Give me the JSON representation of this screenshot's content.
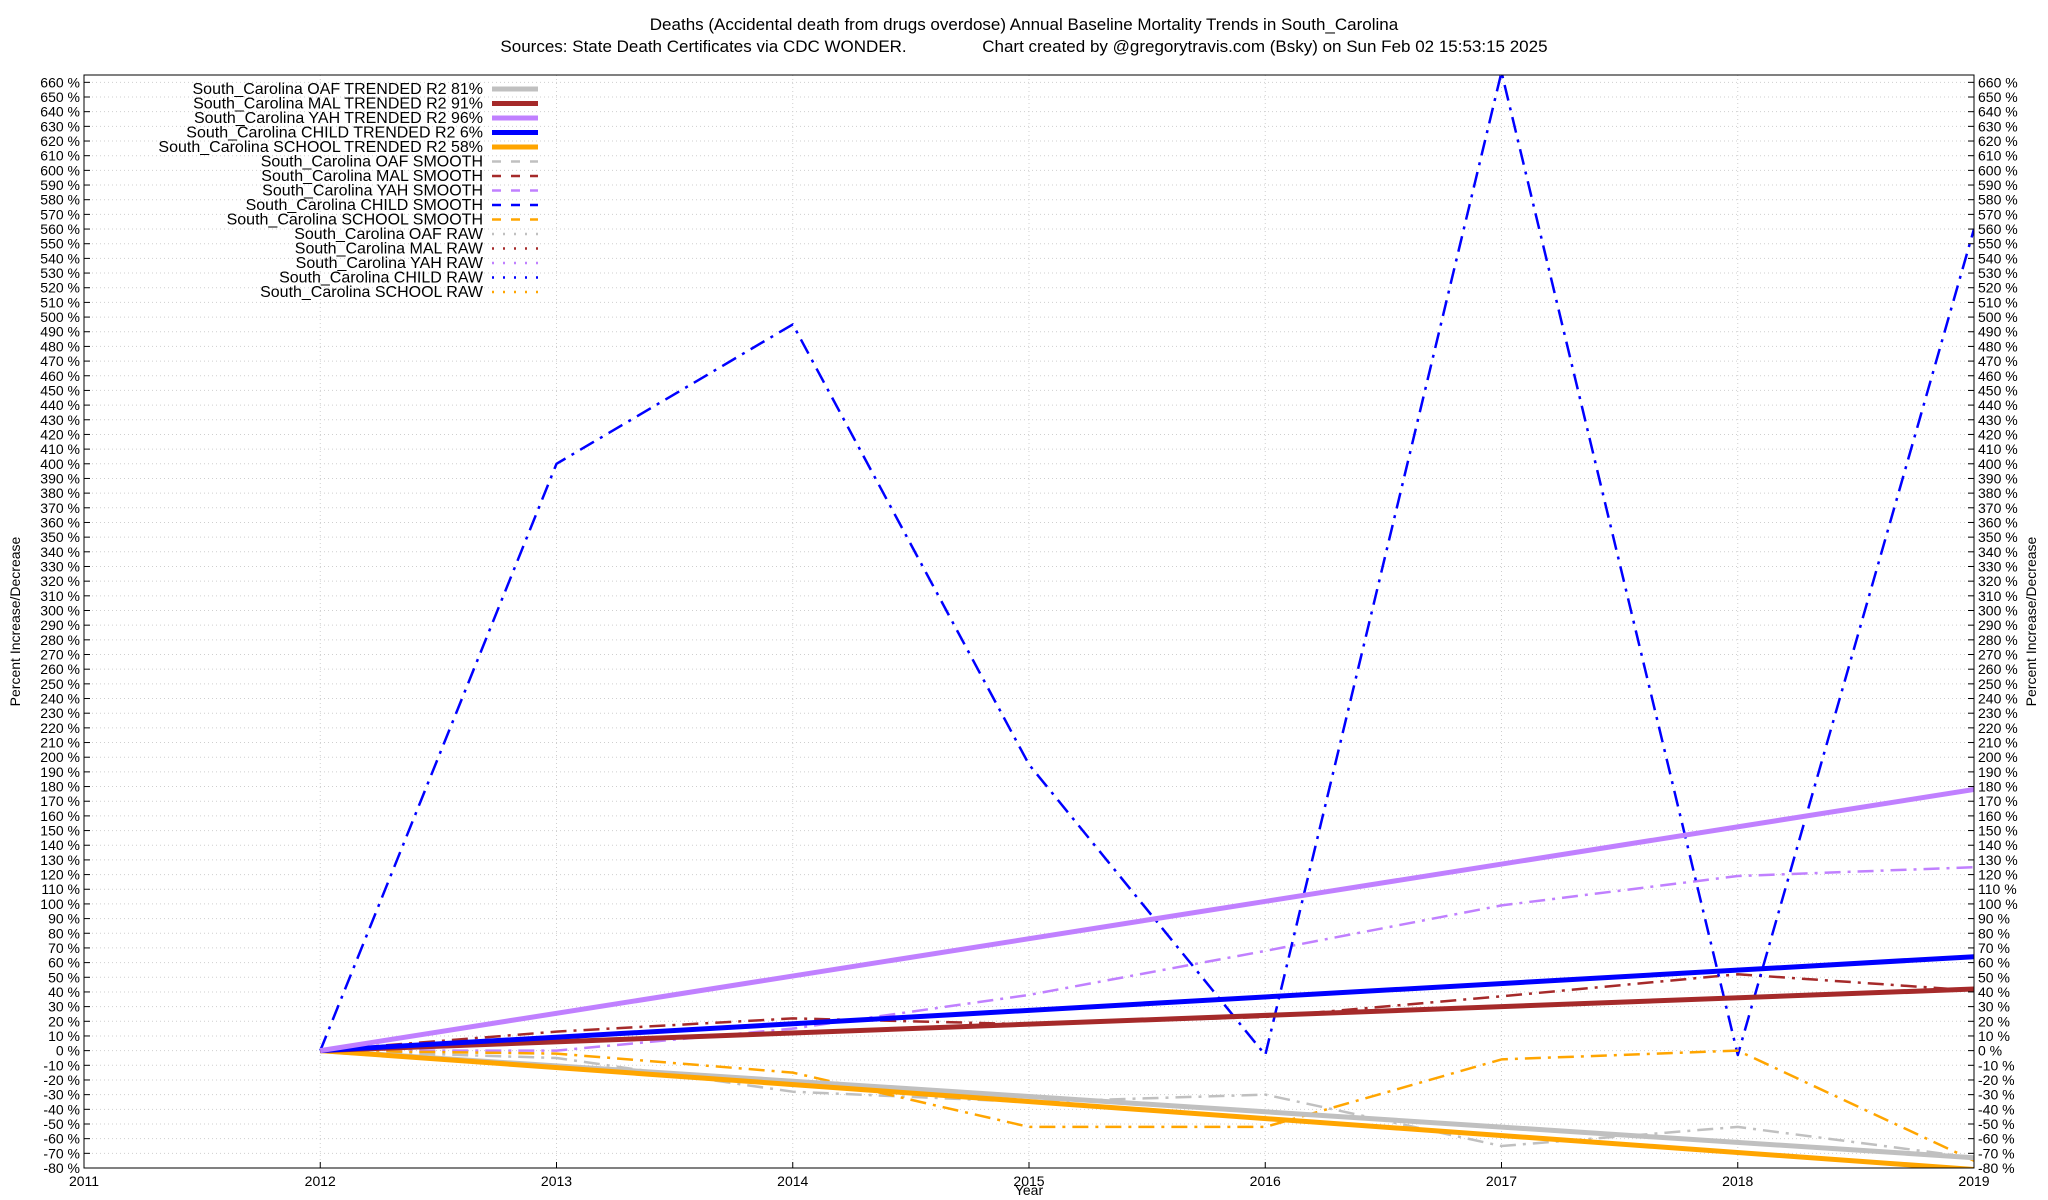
{
  "chart_data": {
    "type": "line",
    "title": "Deaths (Accidental death from drugs overdose)  Annual Baseline Mortality Trends in South_Carolina",
    "subtitle": "Sources: State Death Certificates via CDC WONDER.                Chart created by @gregorytravis.com (Bsky) on Sun Feb 02 15:53:15 2025",
    "xlabel": "Year",
    "ylabel": "Percent Increase/Decrease",
    "y2label": "Percent Increase/Decrease",
    "xlim": [
      2011,
      2019
    ],
    "ylim": [
      -80,
      665
    ],
    "xticks": [
      "2011",
      "2012",
      "2013",
      "2014",
      "2015",
      "2016",
      "2017",
      "2018",
      "2019"
    ],
    "ytick_step": 10,
    "ytick_suffix": " %",
    "grid": true,
    "legend_position": "top-left",
    "series": [
      {
        "name": "South_Carolina OAF TRENDED R2  81%",
        "style": "solid",
        "color": "#c0c0c0",
        "x": [
          2012,
          2019
        ],
        "values": [
          0,
          -73
        ]
      },
      {
        "name": "South_Carolina MAL TRENDED R2  91%",
        "style": "solid",
        "color": "#a52a2a",
        "x": [
          2012,
          2019
        ],
        "values": [
          0,
          42
        ]
      },
      {
        "name": "South_Carolina YAH TRENDED R2  96%",
        "style": "solid",
        "color": "#c080ff",
        "x": [
          2012,
          2019
        ],
        "values": [
          0,
          178
        ]
      },
      {
        "name": "South_Carolina CHILD TRENDED R2   6%",
        "style": "solid",
        "color": "#0000ff",
        "x": [
          2012,
          2019
        ],
        "values": [
          0,
          64
        ]
      },
      {
        "name": "South_Carolina SCHOOL TRENDED R2  58%",
        "style": "solid",
        "color": "#ffa500",
        "x": [
          2012,
          2019
        ],
        "values": [
          0,
          -81
        ]
      },
      {
        "name": "South_Carolina OAF SMOOTH",
        "style": "dashdot",
        "color": "#c0c0c0",
        "x": [
          2012,
          2013,
          2014,
          2015,
          2016,
          2017,
          2018,
          2019
        ],
        "values": [
          0,
          -5,
          -28,
          -35,
          -30,
          -65,
          -52,
          -73
        ]
      },
      {
        "name": "South_Carolina MAL SMOOTH",
        "style": "dashdot",
        "color": "#a52a2a",
        "x": [
          2012,
          2013,
          2014,
          2015,
          2016,
          2017,
          2018,
          2019
        ],
        "values": [
          0,
          13,
          22,
          18,
          23,
          37,
          52,
          41
        ]
      },
      {
        "name": "South_Carolina YAH SMOOTH",
        "style": "dashdot",
        "color": "#c080ff",
        "x": [
          2012,
          2013,
          2014,
          2015,
          2016,
          2017,
          2018,
          2019
        ],
        "values": [
          0,
          0,
          15,
          38,
          68,
          99,
          119,
          125
        ]
      },
      {
        "name": "South_Carolina CHILD SMOOTH",
        "style": "dashdot",
        "color": "#0000ff",
        "x": [
          2012,
          2013,
          2014,
          2015,
          2016,
          2017,
          2018,
          2019
        ],
        "values": [
          0,
          400,
          495,
          195,
          -3,
          667,
          -3,
          560
        ]
      },
      {
        "name": "South_Carolina SCHOOL SMOOTH",
        "style": "dashdot",
        "color": "#ffa500",
        "x": [
          2012,
          2013,
          2014,
          2015,
          2016,
          2017,
          2018,
          2019
        ],
        "values": [
          0,
          -2,
          -15,
          -52,
          -52,
          -6,
          0,
          -75
        ]
      },
      {
        "name": "South_Carolina OAF RAW",
        "style": "dotted",
        "color": "#c0c0c0",
        "x": [],
        "values": []
      },
      {
        "name": "South_Carolina MAL RAW",
        "style": "dotted",
        "color": "#a52a2a",
        "x": [],
        "values": []
      },
      {
        "name": "South_Carolina YAH RAW",
        "style": "dotted",
        "color": "#c080ff",
        "x": [],
        "values": []
      },
      {
        "name": "South_Carolina CHILD RAW",
        "style": "dotted",
        "color": "#0000ff",
        "x": [],
        "values": []
      },
      {
        "name": "South_Carolina SCHOOL RAW",
        "style": "dotted",
        "color": "#ffa500",
        "x": [],
        "values": []
      }
    ]
  }
}
